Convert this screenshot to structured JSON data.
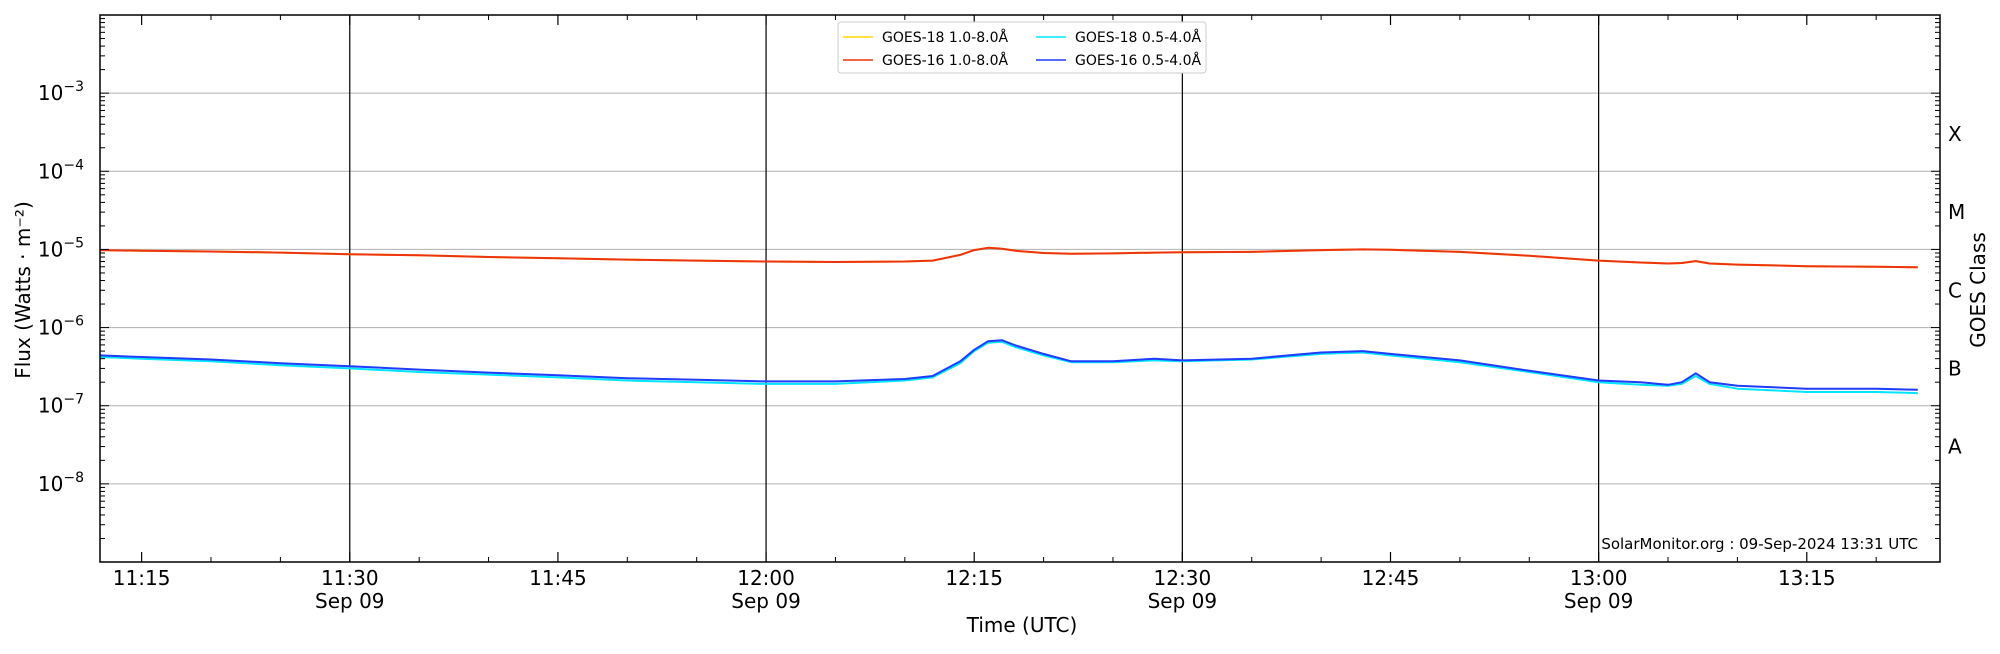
{
  "chart_data": {
    "type": "line",
    "title": "",
    "xlabel": "Time (UTC)",
    "ylabel": "Flux (Watts · m⁻²)",
    "y2label": "GOES Class",
    "yscale": "log",
    "ylim": [
      1e-09,
      0.01
    ],
    "xlim_minutes_utc": [
      11.12,
      13.36
    ],
    "x_ticks": [
      {
        "t": "11:15",
        "date": ""
      },
      {
        "t": "11:30",
        "date": "Sep 09"
      },
      {
        "t": "11:45",
        "date": ""
      },
      {
        "t": "12:00",
        "date": "Sep 09"
      },
      {
        "t": "12:15",
        "date": ""
      },
      {
        "t": "12:30",
        "date": "Sep 09"
      },
      {
        "t": "12:45",
        "date": ""
      },
      {
        "t": "13:00",
        "date": "Sep 09"
      },
      {
        "t": "13:15",
        "date": ""
      }
    ],
    "y_ticks": [
      {
        "mant": "10",
        "exp": "−8",
        "value": 1e-08
      },
      {
        "mant": "10",
        "exp": "−7",
        "value": 1e-07
      },
      {
        "mant": "10",
        "exp": "−6",
        "value": 1e-06
      },
      {
        "mant": "10",
        "exp": "−5",
        "value": 1e-05
      },
      {
        "mant": "10",
        "exp": "−4",
        "value": 0.0001
      },
      {
        "mant": "10",
        "exp": "−3",
        "value": 0.001
      }
    ],
    "goes_classes": [
      {
        "label": "A",
        "value": 3e-08
      },
      {
        "label": "B",
        "value": 3e-07
      },
      {
        "label": "C",
        "value": 3e-06
      },
      {
        "label": "M",
        "value": 3e-05
      },
      {
        "label": "X",
        "value": 0.0003
      }
    ],
    "vertical_lines": [
      "11:30",
      "12:00",
      "12:30",
      "13:00"
    ],
    "grid": "horizontal at decades",
    "legend": {
      "placement": "top-center",
      "columns": 2
    },
    "x_times": [
      "11:12",
      "11:15",
      "11:20",
      "11:25",
      "11:30",
      "11:35",
      "11:40",
      "11:45",
      "11:50",
      "11:55",
      "12:00",
      "12:05",
      "12:10",
      "12:12",
      "12:14",
      "12:15",
      "12:16",
      "12:17",
      "12:18",
      "12:20",
      "12:22",
      "12:25",
      "12:28",
      "12:30",
      "12:35",
      "12:40",
      "12:43",
      "12:45",
      "12:50",
      "12:55",
      "13:00",
      "13:03",
      "13:05",
      "13:06",
      "13:07",
      "13:08",
      "13:10",
      "13:15",
      "13:20",
      "13:23"
    ],
    "series": [
      {
        "name": "GOES-18 1.0-8.0Å",
        "color": "#ffd700",
        "values": [
          9.8e-06,
          9.6e-06,
          9.4e-06,
          9.1e-06,
          8.7e-06,
          8.4e-06,
          8e-06,
          7.7e-06,
          7.4e-06,
          7.2e-06,
          7e-06,
          6.9e-06,
          7e-06,
          7.2e-06,
          8.5e-06,
          9.8e-06,
          1.05e-05,
          1.02e-05,
          9.6e-06,
          9e-06,
          8.8e-06,
          8.9e-06,
          9.1e-06,
          9.2e-06,
          9.3e-06,
          9.8e-06,
          1e-05,
          9.9e-06,
          9.3e-06,
          8.3e-06,
          7.2e-06,
          6.8e-06,
          6.6e-06,
          6.7e-06,
          7.1e-06,
          6.6e-06,
          6.4e-06,
          6.1e-06,
          6e-06,
          5.9e-06
        ]
      },
      {
        "name": "GOES-16 1.0-8.0Å",
        "color": "#ee3311",
        "values": [
          9.8e-06,
          9.6e-06,
          9.4e-06,
          9.1e-06,
          8.7e-06,
          8.4e-06,
          8e-06,
          7.7e-06,
          7.4e-06,
          7.2e-06,
          7e-06,
          6.9e-06,
          7e-06,
          7.2e-06,
          8.5e-06,
          9.8e-06,
          1.05e-05,
          1.02e-05,
          9.6e-06,
          9e-06,
          8.8e-06,
          8.9e-06,
          9.1e-06,
          9.2e-06,
          9.3e-06,
          9.8e-06,
          1e-05,
          9.9e-06,
          9.3e-06,
          8.3e-06,
          7.2e-06,
          6.8e-06,
          6.6e-06,
          6.7e-06,
          7.1e-06,
          6.6e-06,
          6.4e-06,
          6.1e-06,
          6e-06,
          5.9e-06
        ]
      },
      {
        "name": "GOES-18 0.5-4.0Å",
        "color": "#00e5ff",
        "values": [
          4.2e-07,
          4e-07,
          3.7e-07,
          3.3e-07,
          3e-07,
          2.7e-07,
          2.5e-07,
          2.3e-07,
          2.1e-07,
          2e-07,
          1.9e-07,
          1.9e-07,
          2.1e-07,
          2.3e-07,
          3.5e-07,
          5e-07,
          6.4e-07,
          6.6e-07,
          5.6e-07,
          4.4e-07,
          3.6e-07,
          3.6e-07,
          3.8e-07,
          3.7e-07,
          3.9e-07,
          4.6e-07,
          4.8e-07,
          4.4e-07,
          3.6e-07,
          2.7e-07,
          2e-07,
          1.85e-07,
          1.8e-07,
          1.9e-07,
          2.4e-07,
          1.9e-07,
          1.65e-07,
          1.5e-07,
          1.5e-07,
          1.45e-07
        ]
      },
      {
        "name": "GOES-16 0.5-4.0Å",
        "color": "#1f3cff",
        "values": [
          4.4e-07,
          4.2e-07,
          3.9e-07,
          3.5e-07,
          3.2e-07,
          2.9e-07,
          2.65e-07,
          2.45e-07,
          2.25e-07,
          2.15e-07,
          2.05e-07,
          2.05e-07,
          2.2e-07,
          2.4e-07,
          3.7e-07,
          5.2e-07,
          6.7e-07,
          6.9e-07,
          5.9e-07,
          4.6e-07,
          3.7e-07,
          3.7e-07,
          4e-07,
          3.8e-07,
          4e-07,
          4.8e-07,
          5e-07,
          4.6e-07,
          3.8e-07,
          2.8e-07,
          2.1e-07,
          2e-07,
          1.85e-07,
          2e-07,
          2.6e-07,
          2e-07,
          1.8e-07,
          1.65e-07,
          1.65e-07,
          1.6e-07
        ]
      }
    ]
  },
  "footer": {
    "credit": "SolarMonitor.org : 09-Sep-2024 13:31 UTC"
  }
}
